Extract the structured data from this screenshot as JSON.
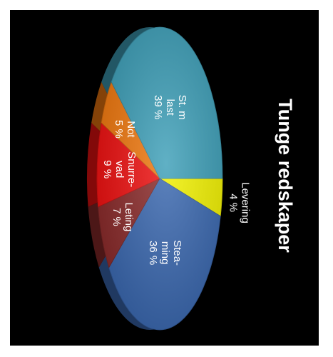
{
  "chart_data": {
    "type": "pie",
    "title": "Tunge redskaper",
    "slices": [
      {
        "label_lines": [
          "Levering",
          "4 %"
        ],
        "value": 4,
        "color": "#f2f200"
      },
      {
        "label_lines": [
          "Stea-",
          "ming",
          "36 %"
        ],
        "value": 36,
        "color": "#3a68b0"
      },
      {
        "label_lines": [
          "Leting",
          "7 %"
        ],
        "value": 7,
        "color": "#8a2a2a"
      },
      {
        "label_lines": [
          "Snurre-",
          "vad",
          "9 %"
        ],
        "value": 9,
        "color": "#ee1010"
      },
      {
        "label_lines": [
          "Not",
          "5 %"
        ],
        "value": 5,
        "color": "#f0780e"
      },
      {
        "label_lines": [
          "St. m",
          "last",
          "39 %"
        ],
        "value": 39,
        "color": "#3d9fb8"
      }
    ],
    "legend": "none"
  }
}
